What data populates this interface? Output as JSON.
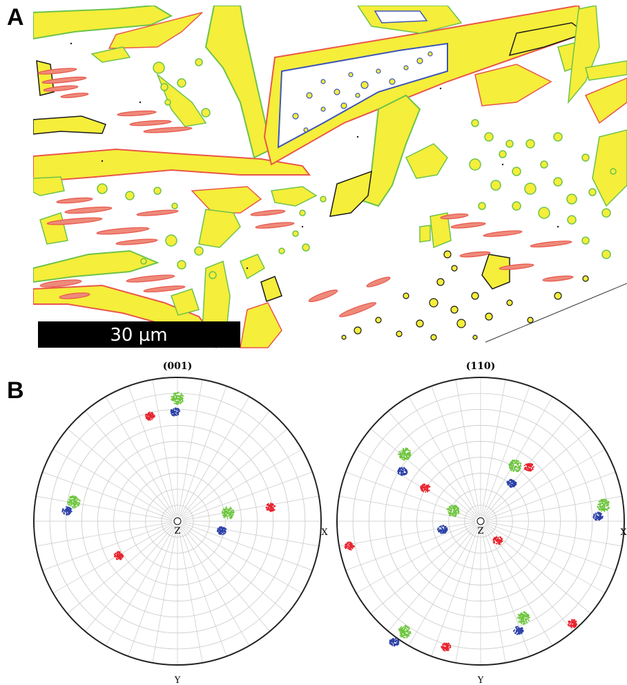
{
  "panels": {
    "a_label": "A",
    "b_label": "B"
  },
  "scale_bar": {
    "text": "30 µm"
  },
  "pole_figures": [
    {
      "title": "(001)",
      "axis_x": "X",
      "axis_y": "Y",
      "axis_z": "Z"
    },
    {
      "title": "(110)",
      "axis_x": "X",
      "axis_y": "Y",
      "axis_z": "Z"
    }
  ],
  "colors": {
    "phase_fill": "#f5ee3a",
    "boundary_green": "#6cc24a",
    "boundary_red": "#e8564b",
    "boundary_black": "#1a1a1a",
    "boundary_blue": "#3c55b8",
    "grain_red": "#ee8a7a",
    "grid": "#c8c8c8",
    "pole_red": "#e8222c",
    "pole_green": "#6cc53c",
    "pole_blue": "#2b3fa8"
  }
}
